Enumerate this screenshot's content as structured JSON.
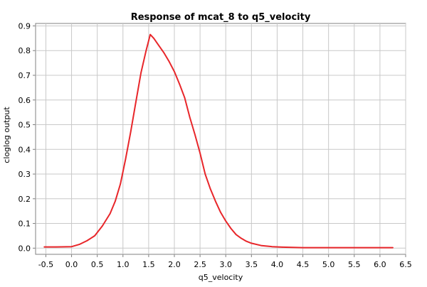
{
  "chart_data": {
    "type": "line",
    "title": "Response of mcat_8 to q5_velocity",
    "xlabel": "q5_velocity",
    "ylabel": "cloglog output",
    "xlim": [
      -0.7,
      6.5
    ],
    "ylim": [
      -0.025,
      0.91
    ],
    "grid": true,
    "x_ticks": [
      -0.5,
      0.0,
      0.5,
      1.0,
      1.5,
      2.0,
      2.5,
      3.0,
      3.5,
      4.0,
      4.5,
      5.0,
      5.5,
      6.0,
      6.5
    ],
    "x_tick_labels": [
      "-0.5",
      "0.0",
      "0.5",
      "1.0",
      "1.5",
      "2.0",
      "2.5",
      "3.0",
      "3.5",
      "4.0",
      "4.5",
      "5.0",
      "5.5",
      "6.0",
      "6.5"
    ],
    "y_ticks": [
      0.0,
      0.1,
      0.2,
      0.3,
      0.4,
      0.5,
      0.6,
      0.7,
      0.8,
      0.9
    ],
    "y_tick_labels": [
      "0.0",
      "0.1",
      "0.2",
      "0.3",
      "0.4",
      "0.5",
      "0.6",
      "0.7",
      "0.8",
      "0.9"
    ],
    "series": [
      {
        "color": "#e8262a",
        "x": [
          -0.53,
          -0.3,
          0.0,
          0.15,
          0.3,
          0.45,
          0.6,
          0.75,
          0.85,
          0.95,
          1.05,
          1.15,
          1.25,
          1.35,
          1.45,
          1.5,
          1.53,
          1.6,
          1.7,
          1.8,
          1.9,
          2.0,
          2.1,
          2.2,
          2.3,
          2.4,
          2.5,
          2.6,
          2.7,
          2.8,
          2.9,
          3.0,
          3.1,
          3.2,
          3.3,
          3.4,
          3.5,
          3.7,
          3.9,
          4.1,
          4.3,
          4.5,
          5.0,
          5.5,
          6.0,
          6.25
        ],
        "y": [
          0.005,
          0.005,
          0.006,
          0.015,
          0.03,
          0.05,
          0.09,
          0.14,
          0.19,
          0.26,
          0.36,
          0.47,
          0.59,
          0.71,
          0.8,
          0.84,
          0.865,
          0.85,
          0.82,
          0.79,
          0.755,
          0.715,
          0.665,
          0.61,
          0.53,
          0.46,
          0.385,
          0.3,
          0.24,
          0.19,
          0.145,
          0.11,
          0.08,
          0.055,
          0.04,
          0.028,
          0.02,
          0.01,
          0.006,
          0.004,
          0.003,
          0.002,
          0.002,
          0.002,
          0.002,
          0.002
        ]
      }
    ]
  }
}
